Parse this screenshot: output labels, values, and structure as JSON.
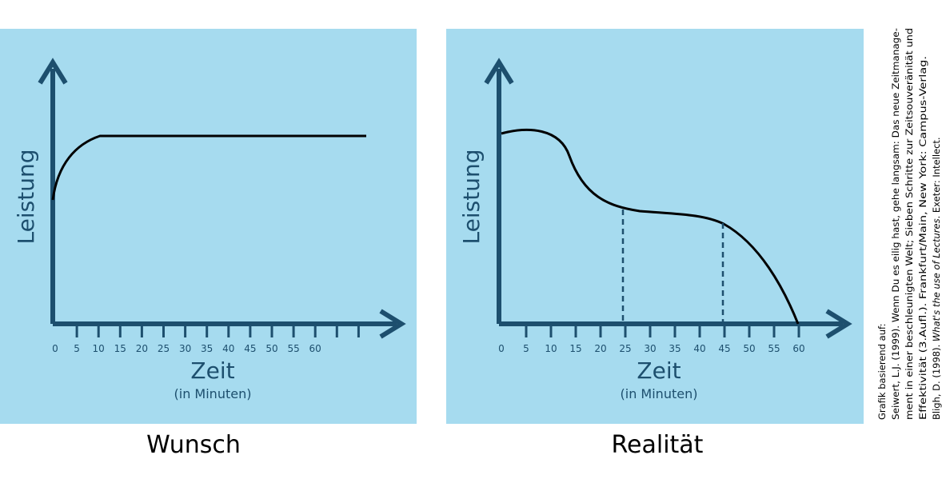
{
  "panels": [
    {
      "title": "Wunsch",
      "y_label": "Leistung",
      "x_label": "Zeit",
      "x_unit": "(in Minuten)",
      "ticks": [
        "0",
        "5",
        "10",
        "15",
        "20",
        "25",
        "30",
        "35",
        "40",
        "45",
        "50",
        "55",
        "60"
      ]
    },
    {
      "title": "Realität",
      "y_label": "Leistung",
      "x_label": "Zeit",
      "x_unit": "(in Minuten)",
      "ticks": [
        "0",
        "5",
        "10",
        "15",
        "20",
        "25",
        "30",
        "35",
        "40",
        "45",
        "50",
        "55",
        "60"
      ]
    }
  ],
  "source": {
    "heading": "Grafik basierend auf:",
    "lines": [
      "Seiwert, L.J. (1999). Wenn Du es eilig hast, gehe langsam: Das neue Zeitmanage-",
      "ment in einer beschleunigten Welt; Sieben Schritte zur Zeitsouveränität und",
      "Effektivität (3.Aufl.). Frankfurt/Main, New York: Campus-Verlag."
    ],
    "last_line": {
      "before": "Bligh, D. (1998). ",
      "italic": "What's the use of Lectures",
      "after": ". Exeter: Intellect."
    }
  }
}
